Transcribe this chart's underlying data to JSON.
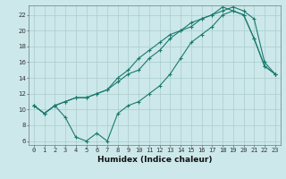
{
  "title": "",
  "xlabel": "Humidex (Indice chaleur)",
  "background_color": "#cce8ea",
  "grid_color": "#aacccc",
  "line_color": "#1a7a6e",
  "xlim": [
    -0.5,
    23.5
  ],
  "ylim": [
    5.5,
    23.2
  ],
  "xticks": [
    0,
    1,
    2,
    3,
    4,
    5,
    6,
    7,
    8,
    9,
    10,
    11,
    12,
    13,
    14,
    15,
    16,
    17,
    18,
    19,
    20,
    21,
    22,
    23
  ],
  "yticks": [
    6,
    8,
    10,
    12,
    14,
    16,
    18,
    20,
    22
  ],
  "series1_y": [
    10.5,
    9.5,
    10.5,
    9.0,
    6.5,
    6.0,
    7.0,
    6.0,
    9.5,
    10.5,
    11.0,
    12.0,
    13.0,
    14.5,
    16.5,
    18.5,
    19.5,
    20.5,
    22.0,
    22.5,
    22.0,
    19.0,
    15.5,
    14.5
  ],
  "series2_y": [
    10.5,
    9.5,
    10.5,
    11.0,
    11.5,
    11.5,
    12.0,
    12.5,
    13.5,
    14.5,
    15.0,
    16.5,
    17.5,
    19.0,
    20.0,
    20.5,
    21.5,
    22.0,
    23.0,
    22.5,
    22.0,
    19.0,
    15.5,
    14.5
  ],
  "series3_y": [
    10.5,
    9.5,
    10.5,
    11.0,
    11.5,
    11.5,
    12.0,
    12.5,
    14.0,
    15.0,
    16.5,
    17.5,
    18.5,
    19.5,
    20.0,
    21.0,
    21.5,
    22.0,
    22.5,
    23.0,
    22.5,
    21.5,
    16.0,
    14.5
  ],
  "marker": "+",
  "markersize": 3,
  "linewidth": 0.8,
  "xlabel_fontsize": 6.5,
  "tick_fontsize": 5.0
}
